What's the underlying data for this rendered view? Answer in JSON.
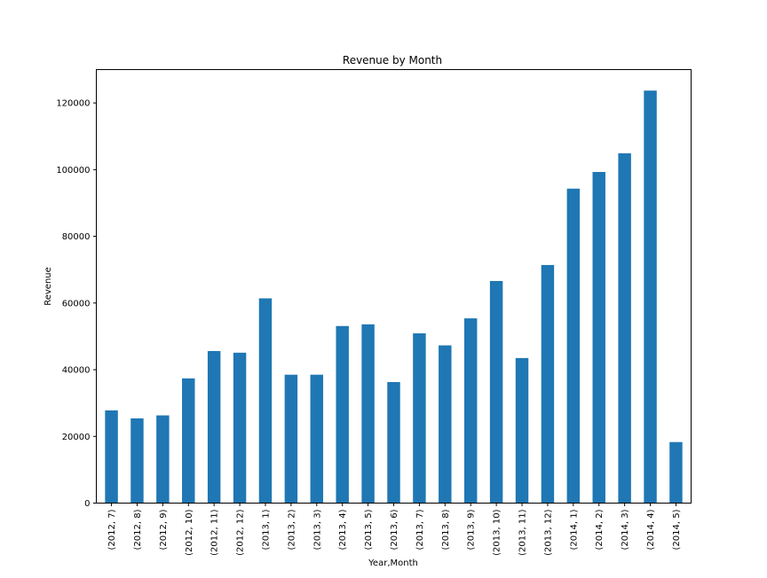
{
  "chart_data": {
    "type": "bar",
    "title": "Revenue by Month",
    "xlabel": "Year,Month",
    "ylabel": "Revenue",
    "ylim": [
      0,
      130000
    ],
    "yticks": [
      0,
      20000,
      40000,
      60000,
      80000,
      100000,
      120000
    ],
    "ytick_labels": [
      "0",
      "20000",
      "40000",
      "60000",
      "80000",
      "100000",
      "120000"
    ],
    "grid": false,
    "legend": "none",
    "bar_color": "#1f77b4",
    "categories": [
      "(2012, 7)",
      "(2012, 8)",
      "(2012, 9)",
      "(2012, 10)",
      "(2012, 11)",
      "(2012, 12)",
      "(2013, 1)",
      "(2013, 2)",
      "(2013, 3)",
      "(2013, 4)",
      "(2013, 5)",
      "(2013, 6)",
      "(2013, 7)",
      "(2013, 8)",
      "(2013, 9)",
      "(2013, 10)",
      "(2013, 11)",
      "(2013, 12)",
      "(2014, 1)",
      "(2014, 2)",
      "(2014, 3)",
      "(2014, 4)",
      "(2014, 5)"
    ],
    "values": [
      27800,
      25400,
      26300,
      37400,
      45600,
      45100,
      61400,
      38500,
      38500,
      53100,
      53600,
      36300,
      50900,
      47300,
      55400,
      66600,
      43500,
      71400,
      94300,
      99300,
      104900,
      123700,
      18300
    ]
  }
}
